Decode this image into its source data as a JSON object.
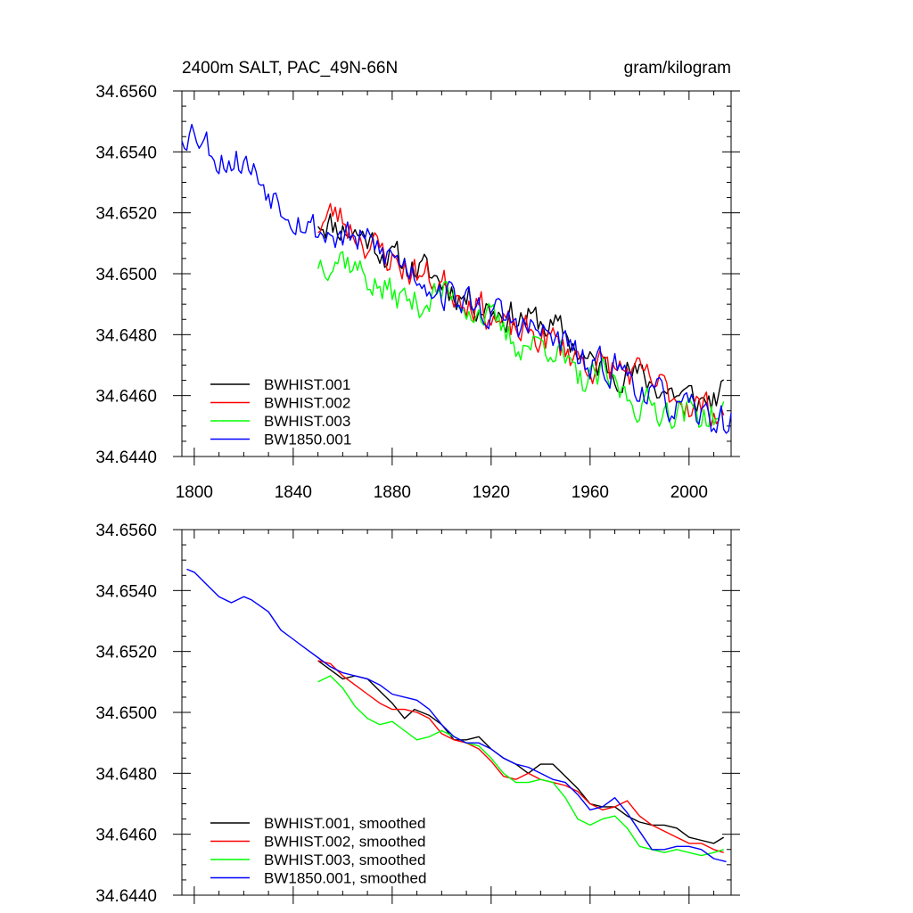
{
  "chart_data": [
    {
      "type": "line",
      "title_left": "2400m SALT, PAC_49N-66N",
      "title_right": "gram/kilogram",
      "xlim": [
        1795,
        2017
      ],
      "ylim": [
        34.644,
        34.656
      ],
      "x_ticks": [
        1800,
        1840,
        1880,
        1920,
        1960,
        2000
      ],
      "x_tick_labels": [
        "1800",
        "1840",
        "1880",
        "1920",
        "1960",
        "2000"
      ],
      "x_minor_step": 10,
      "y_ticks": [
        34.644,
        34.646,
        34.648,
        34.65,
        34.652,
        34.654,
        34.656
      ],
      "y_tick_labels": [
        "34.6440",
        "34.6460",
        "34.6480",
        "34.6500",
        "34.6520",
        "34.6540",
        "34.6560"
      ],
      "y_minor_step": 0.0005,
      "legend_position": "bottom-left",
      "series": [
        {
          "name": "BWHIST.001",
          "color": "#000000",
          "x_start": 1850,
          "x_end": 2014,
          "start": 34.6518,
          "end": 34.6458,
          "noise": 0.00048,
          "seed": 11,
          "anchors": [
            [
              1850,
              34.6518
            ],
            [
              1870,
              34.6512
            ],
            [
              1880,
              34.6505
            ],
            [
              1895,
              34.65
            ],
            [
              1910,
              34.6492
            ],
            [
              1925,
              34.6487
            ],
            [
              1940,
              34.6484
            ],
            [
              1950,
              34.648
            ],
            [
              1960,
              34.647
            ],
            [
              1975,
              34.6468
            ],
            [
              1990,
              34.6462
            ],
            [
              2005,
              34.6458
            ],
            [
              2014,
              34.646
            ]
          ]
        },
        {
          "name": "BWHIST.002",
          "color": "#ff0000",
          "x_start": 1850,
          "x_end": 2014,
          "start": 34.6517,
          "end": 34.6456,
          "noise": 0.0005,
          "seed": 23,
          "anchors": [
            [
              1850,
              34.6516
            ],
            [
              1857,
              34.652
            ],
            [
              1870,
              34.651
            ],
            [
              1885,
              34.6502
            ],
            [
              1900,
              34.6497
            ],
            [
              1915,
              34.649
            ],
            [
              1925,
              34.6482
            ],
            [
              1945,
              34.6478
            ],
            [
              1960,
              34.647
            ],
            [
              1975,
              34.6468
            ],
            [
              1990,
              34.6462
            ],
            [
              2005,
              34.6456
            ],
            [
              2014,
              34.6455
            ]
          ]
        },
        {
          "name": "BWHIST.003",
          "color": "#00ff00",
          "x_start": 1850,
          "x_end": 2014,
          "start": 34.6508,
          "end": 34.6453,
          "noise": 0.00048,
          "seed": 37,
          "anchors": [
            [
              1850,
              34.6504
            ],
            [
              1860,
              34.6506
            ],
            [
              1875,
              34.6495
            ],
            [
              1890,
              34.649
            ],
            [
              1900,
              34.6494
            ],
            [
              1915,
              34.6488
            ],
            [
              1930,
              34.6477
            ],
            [
              1945,
              34.6477
            ],
            [
              1955,
              34.6464
            ],
            [
              1965,
              34.6466
            ],
            [
              1980,
              34.6457
            ],
            [
              1995,
              34.6455
            ],
            [
              2014,
              34.6453
            ]
          ]
        },
        {
          "name": "BW1850.001",
          "color": "#0000ff",
          "x_start": 1795,
          "x_end": 2017,
          "start": 34.6546,
          "end": 34.6451,
          "noise": 0.0005,
          "seed": 53,
          "anchors": [
            [
              1795,
              34.6546
            ],
            [
              1800,
              34.6548
            ],
            [
              1810,
              34.6538
            ],
            [
              1820,
              34.6537
            ],
            [
              1830,
              34.6528
            ],
            [
              1840,
              34.652
            ],
            [
              1850,
              34.6514
            ],
            [
              1870,
              34.651
            ],
            [
              1885,
              34.6503
            ],
            [
              1900,
              34.6494
            ],
            [
              1920,
              34.6487
            ],
            [
              1935,
              34.6482
            ],
            [
              1950,
              34.6477
            ],
            [
              1960,
              34.6468
            ],
            [
              1970,
              34.647
            ],
            [
              1985,
              34.646
            ],
            [
              2000,
              34.6454
            ],
            [
              2017,
              34.6451
            ]
          ]
        }
      ]
    },
    {
      "type": "line",
      "xlim": [
        1795,
        2017
      ],
      "ylim": [
        34.644,
        34.656
      ],
      "x_ticks": [
        1800,
        1840,
        1880,
        1920,
        1960,
        2000
      ],
      "x_minor_step": 10,
      "y_ticks": [
        34.644,
        34.646,
        34.648,
        34.65,
        34.652,
        34.654,
        34.656
      ],
      "y_tick_labels": [
        "34.6440",
        "34.6460",
        "34.6480",
        "34.6500",
        "34.6520",
        "34.6540",
        "34.6560"
      ],
      "y_minor_step": 0.0005,
      "legend_position": "bottom-left",
      "series": [
        {
          "name": "BWHIST.001, smoothed",
          "color": "#000000",
          "points": [
            [
              1850,
              34.6517
            ],
            [
              1855,
              34.6514
            ],
            [
              1860,
              34.6511
            ],
            [
              1865,
              34.6512
            ],
            [
              1870,
              34.6511
            ],
            [
              1875,
              34.6507
            ],
            [
              1880,
              34.6503
            ],
            [
              1885,
              34.6498
            ],
            [
              1889,
              34.6501
            ],
            [
              1895,
              34.6499
            ],
            [
              1900,
              34.6496
            ],
            [
              1905,
              34.6491
            ],
            [
              1910,
              34.6491
            ],
            [
              1915,
              34.6492
            ],
            [
              1920,
              34.6488
            ],
            [
              1925,
              34.6485
            ],
            [
              1930,
              34.6483
            ],
            [
              1935,
              34.648
            ],
            [
              1940,
              34.6483
            ],
            [
              1945,
              34.6483
            ],
            [
              1950,
              34.6479
            ],
            [
              1955,
              34.6475
            ],
            [
              1960,
              34.647
            ],
            [
              1965,
              34.6469
            ],
            [
              1970,
              34.6469
            ],
            [
              1975,
              34.6466
            ],
            [
              1980,
              34.6464
            ],
            [
              1985,
              34.6463
            ],
            [
              1990,
              34.6463
            ],
            [
              1995,
              34.6462
            ],
            [
              2000,
              34.6459
            ],
            [
              2005,
              34.6458
            ],
            [
              2010,
              34.6457
            ],
            [
              2014,
              34.6459
            ]
          ]
        },
        {
          "name": "BWHIST.002, smoothed",
          "color": "#ff0000",
          "points": [
            [
              1850,
              34.6517
            ],
            [
              1855,
              34.6516
            ],
            [
              1860,
              34.6512
            ],
            [
              1865,
              34.6509
            ],
            [
              1870,
              34.6506
            ],
            [
              1875,
              34.6503
            ],
            [
              1880,
              34.6501
            ],
            [
              1885,
              34.6501
            ],
            [
              1890,
              34.65
            ],
            [
              1895,
              34.6498
            ],
            [
              1900,
              34.6493
            ],
            [
              1905,
              34.6491
            ],
            [
              1910,
              34.649
            ],
            [
              1915,
              34.6488
            ],
            [
              1920,
              34.6484
            ],
            [
              1925,
              34.6479
            ],
            [
              1930,
              34.6478
            ],
            [
              1935,
              34.648
            ],
            [
              1940,
              34.6478
            ],
            [
              1945,
              34.6477
            ],
            [
              1950,
              34.6476
            ],
            [
              1955,
              34.6474
            ],
            [
              1960,
              34.647
            ],
            [
              1965,
              34.6468
            ],
            [
              1970,
              34.6469
            ],
            [
              1975,
              34.6471
            ],
            [
              1980,
              34.6466
            ],
            [
              1985,
              34.6463
            ],
            [
              1990,
              34.6461
            ],
            [
              1995,
              34.6459
            ],
            [
              2000,
              34.6457
            ],
            [
              2005,
              34.6457
            ],
            [
              2010,
              34.6455
            ],
            [
              2014,
              34.6454
            ]
          ]
        },
        {
          "name": "BWHIST.003, smoothed",
          "color": "#00ff00",
          "points": [
            [
              1850,
              34.651
            ],
            [
              1855,
              34.6512
            ],
            [
              1860,
              34.6508
            ],
            [
              1865,
              34.6502
            ],
            [
              1870,
              34.6498
            ],
            [
              1875,
              34.6496
            ],
            [
              1880,
              34.6497
            ],
            [
              1885,
              34.6494
            ],
            [
              1890,
              34.6491
            ],
            [
              1895,
              34.6492
            ],
            [
              1900,
              34.6494
            ],
            [
              1905,
              34.6492
            ],
            [
              1910,
              34.649
            ],
            [
              1915,
              34.6489
            ],
            [
              1920,
              34.6485
            ],
            [
              1925,
              34.648
            ],
            [
              1930,
              34.6477
            ],
            [
              1935,
              34.6477
            ],
            [
              1940,
              34.6478
            ],
            [
              1945,
              34.6477
            ],
            [
              1950,
              34.6472
            ],
            [
              1955,
              34.6465
            ],
            [
              1960,
              34.6463
            ],
            [
              1965,
              34.6465
            ],
            [
              1970,
              34.6466
            ],
            [
              1975,
              34.6462
            ],
            [
              1980,
              34.6456
            ],
            [
              1985,
              34.6455
            ],
            [
              1990,
              34.6454
            ],
            [
              1995,
              34.6455
            ],
            [
              2000,
              34.6454
            ],
            [
              2005,
              34.6453
            ],
            [
              2010,
              34.6454
            ],
            [
              2014,
              34.6455
            ]
          ]
        },
        {
          "name": "BW1850.001, smoothed",
          "color": "#0000ff",
          "points": [
            [
              1797,
              34.6547
            ],
            [
              1800,
              34.6546
            ],
            [
              1805,
              34.6542
            ],
            [
              1810,
              34.6538
            ],
            [
              1815,
              34.6536
            ],
            [
              1820,
              34.6538
            ],
            [
              1823,
              34.6537
            ],
            [
              1830,
              34.6533
            ],
            [
              1835,
              34.6527
            ],
            [
              1840,
              34.6524
            ],
            [
              1845,
              34.6521
            ],
            [
              1850,
              34.6518
            ],
            [
              1855,
              34.6515
            ],
            [
              1860,
              34.6513
            ],
            [
              1865,
              34.6512
            ],
            [
              1870,
              34.6511
            ],
            [
              1875,
              34.6509
            ],
            [
              1880,
              34.6506
            ],
            [
              1885,
              34.6505
            ],
            [
              1890,
              34.6504
            ],
            [
              1895,
              34.6501
            ],
            [
              1900,
              34.6496
            ],
            [
              1905,
              34.6492
            ],
            [
              1910,
              34.649
            ],
            [
              1915,
              34.649
            ],
            [
              1920,
              34.6488
            ],
            [
              1925,
              34.6485
            ],
            [
              1930,
              34.6483
            ],
            [
              1935,
              34.6482
            ],
            [
              1940,
              34.648
            ],
            [
              1945,
              34.6478
            ],
            [
              1950,
              34.6477
            ],
            [
              1955,
              34.6473
            ],
            [
              1960,
              34.6468
            ],
            [
              1965,
              34.6469
            ],
            [
              1970,
              34.6472
            ],
            [
              1975,
              34.6467
            ],
            [
              1980,
              34.6461
            ],
            [
              1985,
              34.6455
            ],
            [
              1990,
              34.6455
            ],
            [
              1995,
              34.6456
            ],
            [
              2000,
              34.6456
            ],
            [
              2005,
              34.6455
            ],
            [
              2010,
              34.6452
            ],
            [
              2015,
              34.6451
            ]
          ]
        }
      ]
    }
  ]
}
